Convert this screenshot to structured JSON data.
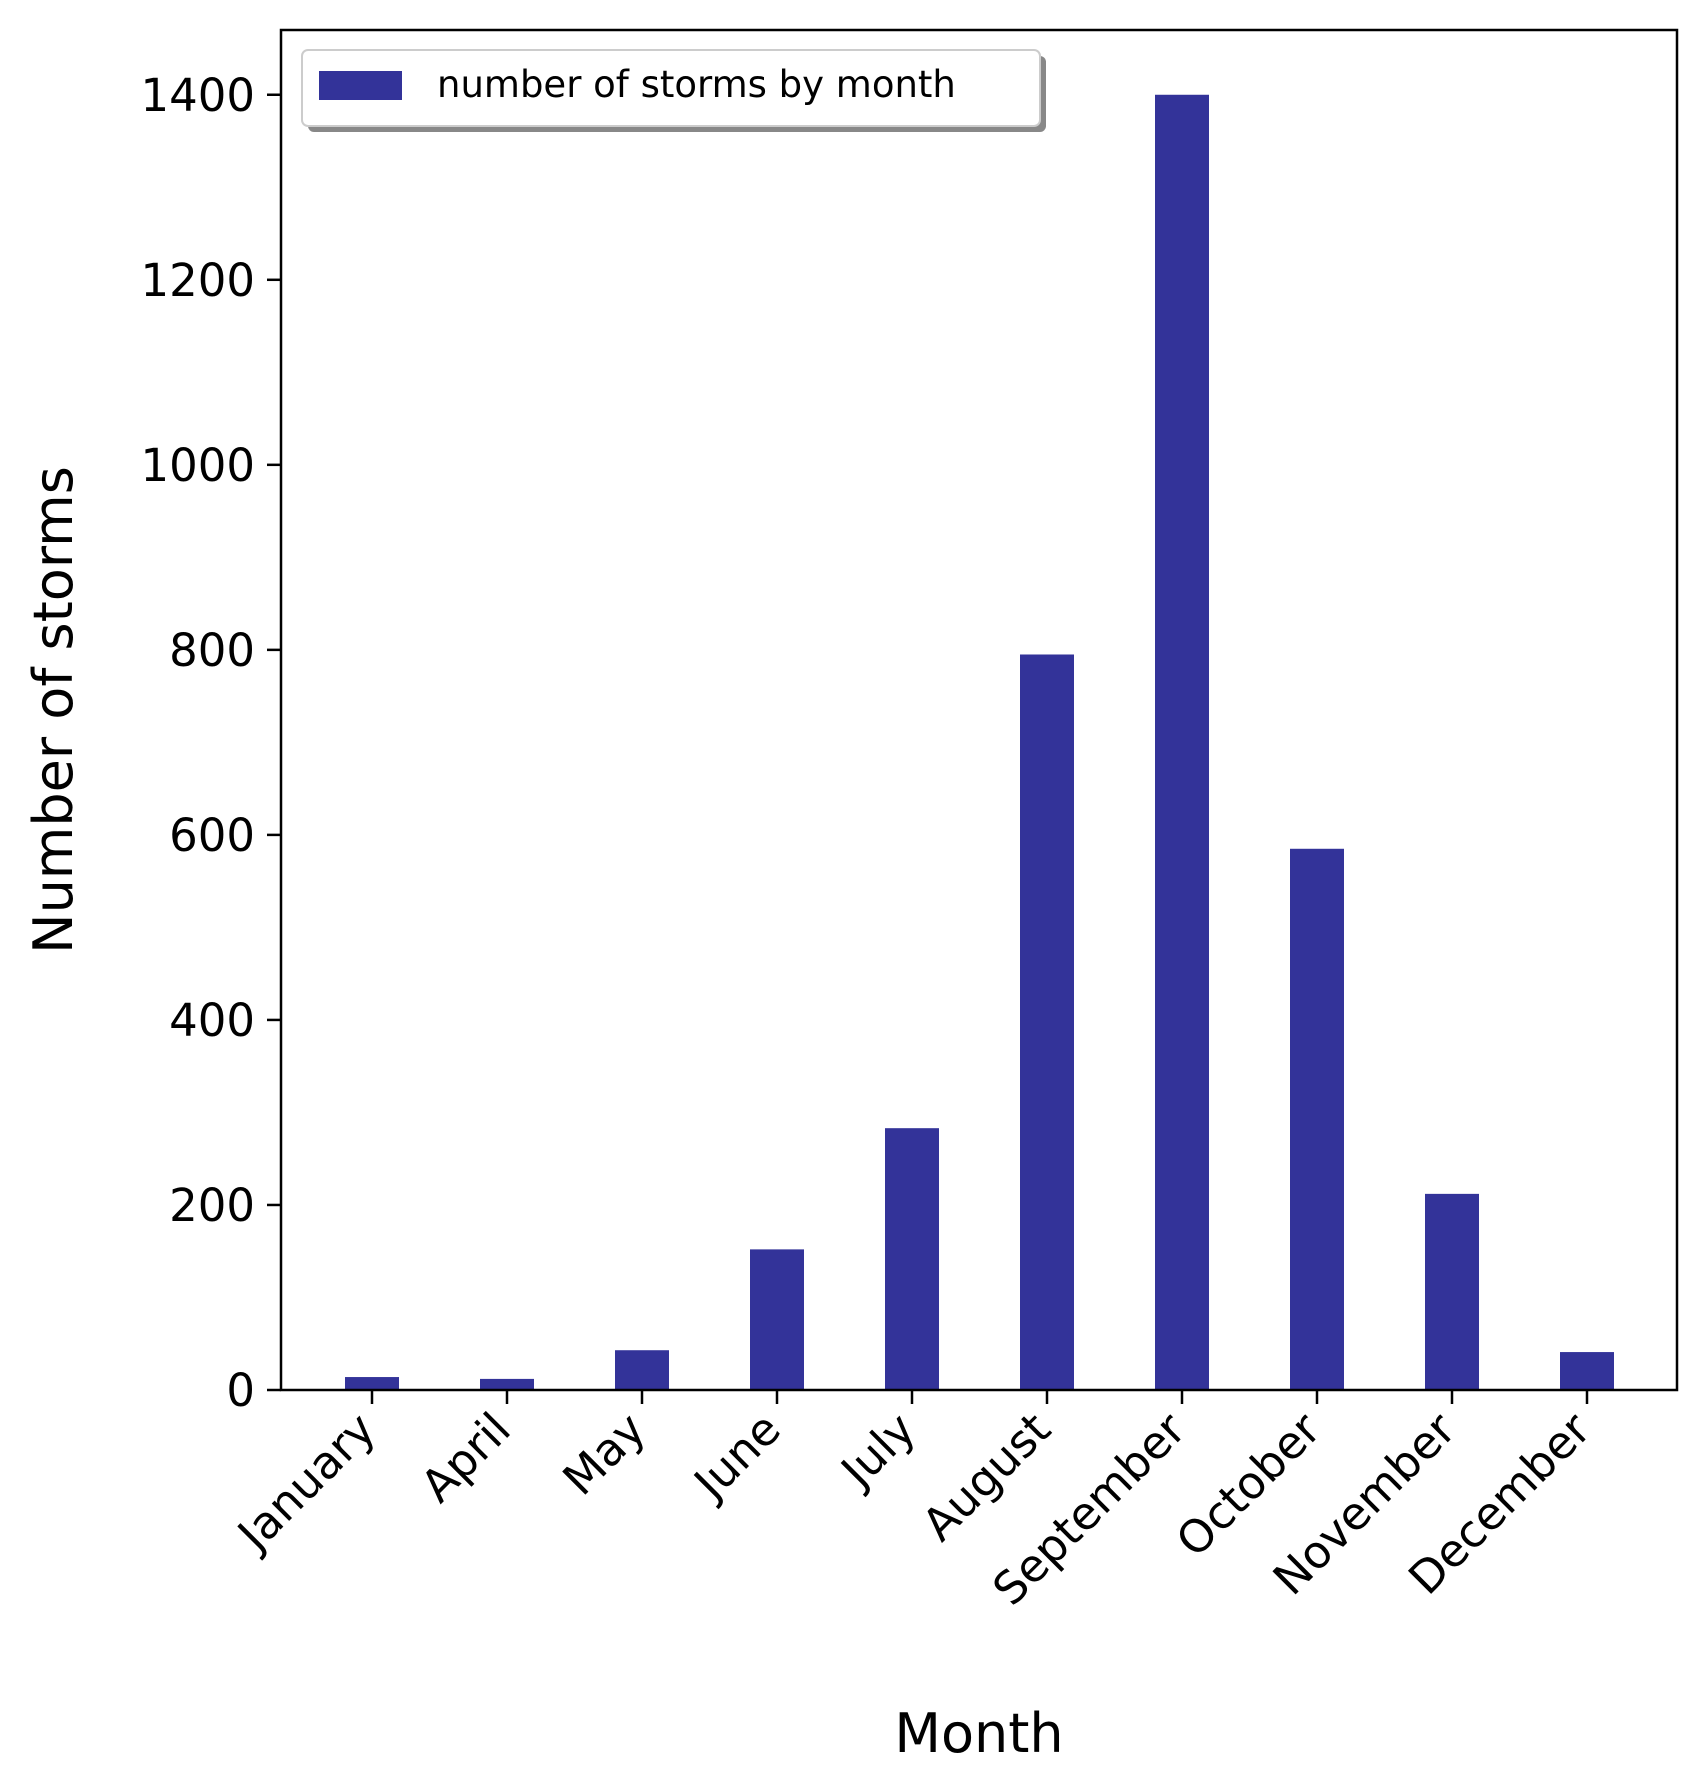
{
  "chart_data": {
    "type": "bar",
    "categories": [
      "January",
      "April",
      "May",
      "June",
      "July",
      "August",
      "September",
      "October",
      "November",
      "December"
    ],
    "series": [
      {
        "name": "number of storms by month",
        "color": "#333399",
        "values": [
          14,
          12,
          43,
          152,
          283,
          795,
          1400,
          585,
          212,
          41
        ]
      }
    ],
    "xlabel": "Month",
    "ylabel": "Number of storms",
    "ylim": [
      0,
      1470
    ],
    "yticks": [
      0,
      200,
      400,
      600,
      800,
      1000,
      1200,
      1400
    ],
    "grid": false,
    "legend_position": "top-left"
  }
}
